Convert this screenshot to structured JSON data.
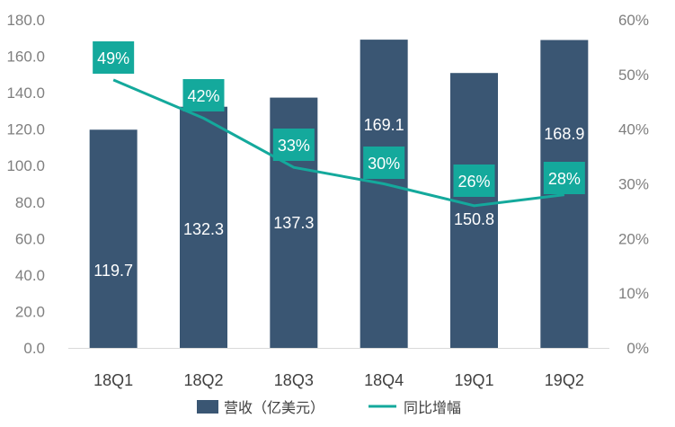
{
  "chart_data": {
    "type": "bar",
    "categories": [
      "18Q1",
      "18Q2",
      "18Q3",
      "18Q4",
      "19Q1",
      "19Q2"
    ],
    "series": [
      {
        "name": "营收（亿美元）",
        "type": "bar",
        "axis": "left",
        "values": [
          119.7,
          132.3,
          137.3,
          169.1,
          150.8,
          168.9
        ],
        "labels": [
          "119.7",
          "132.3",
          "137.3",
          "169.1",
          "150.8",
          "168.9"
        ]
      },
      {
        "name": "同比增幅",
        "type": "line",
        "axis": "right",
        "values": [
          49,
          42,
          33,
          30,
          26,
          28
        ],
        "labels": [
          "49%",
          "42%",
          "33%",
          "30%",
          "26%",
          "28%"
        ]
      }
    ],
    "y_left": {
      "min": 0,
      "max": 180,
      "step": 20,
      "ticks": [
        "0.0",
        "20.0",
        "40.0",
        "60.0",
        "80.0",
        "100.0",
        "120.0",
        "140.0",
        "160.0",
        "180.0"
      ]
    },
    "y_right": {
      "min": 0,
      "max": 60,
      "step": 10,
      "ticks": [
        "0%",
        "10%",
        "20%",
        "30%",
        "40%",
        "50%",
        "60%"
      ]
    },
    "legend_position": "bottom",
    "grid": false
  },
  "colors": {
    "bar": "#3a5673",
    "line": "#14a99c",
    "label_box": "#14a99c",
    "axis_text": "#7f7f7f"
  }
}
